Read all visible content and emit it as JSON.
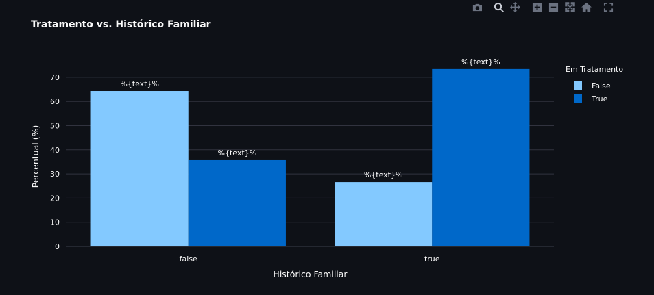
{
  "modebar": {
    "buttons": [
      {
        "name": "camera-icon",
        "active": false
      },
      {
        "name": "zoom-icon",
        "active": true
      },
      {
        "name": "pan-icon",
        "active": false
      },
      {
        "name": "zoom-in-icon",
        "active": false
      },
      {
        "name": "zoom-out-icon",
        "active": false
      },
      {
        "name": "autoscale-icon",
        "active": false
      },
      {
        "name": "home-icon",
        "active": false
      },
      {
        "name": "fullscreen-icon",
        "active": false
      }
    ]
  },
  "chart_data": {
    "type": "bar",
    "title": "Tratamento vs. Histórico Familiar",
    "xlabel": "Histórico Familiar",
    "ylabel": "Percentual (%)",
    "categories": [
      "false",
      "true"
    ],
    "series": [
      {
        "name": "False",
        "values": [
          64.3,
          26.6
        ],
        "color": "#83c9ff",
        "label": "%{text}%"
      },
      {
        "name": "True",
        "values": [
          35.7,
          73.4
        ],
        "color": "#0068c9",
        "label": "%{text}%"
      }
    ],
    "ylim": [
      0,
      74.5
    ],
    "yticks": [
      0,
      10,
      20,
      30,
      40,
      50,
      60,
      70
    ],
    "grid": true,
    "legend": {
      "title": "Em Tratamento",
      "placement": "right"
    }
  }
}
